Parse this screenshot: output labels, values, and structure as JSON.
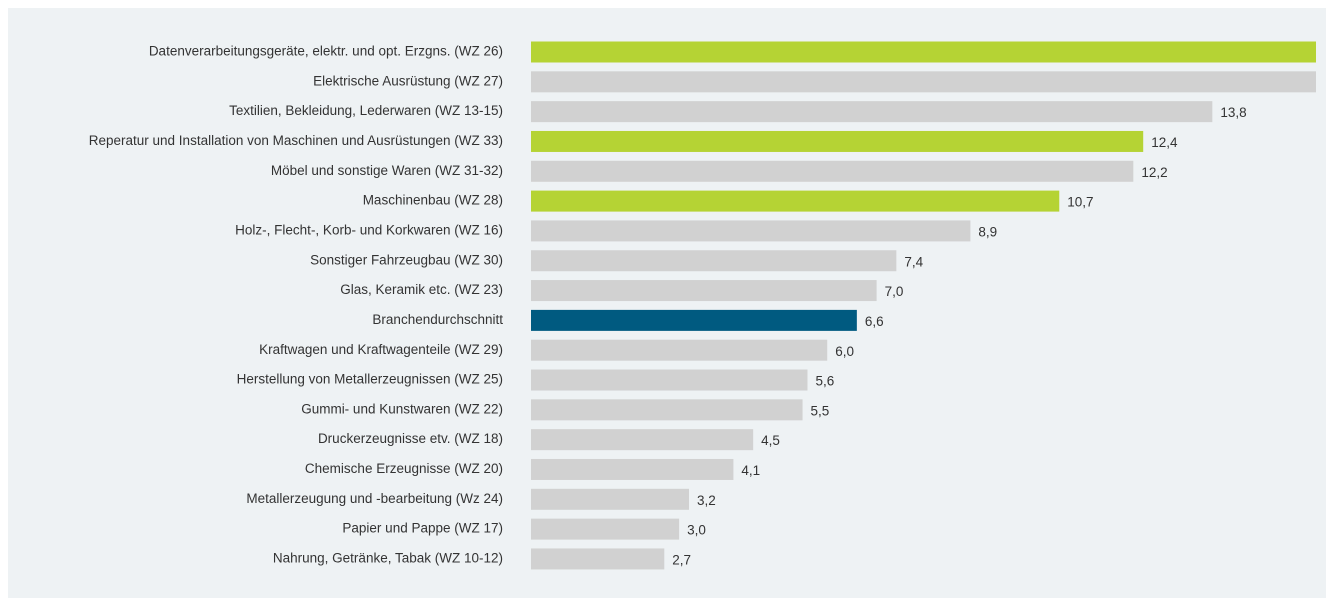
{
  "chart_data": {
    "type": "bar",
    "orientation": "horizontal",
    "categories": [
      "Datenverarbeitungsgeräte, elektr. und opt. Erzgns. (WZ 26)",
      "Elektrische Ausrüstung (WZ 27)",
      "Textilien, Bekleidung, Lederwaren (WZ 13-15)",
      "Reperatur und Installation von Maschinen und Ausrüstungen (WZ 33)",
      "Möbel und sonstige Waren (WZ 31-32)",
      "Maschinenbau (WZ 28)",
      "Holz-, Flecht-, Korb- und Korkwaren (WZ 16)",
      "Sonstiger Fahrzeugbau (WZ 30)",
      "Glas, Keramik etc. (WZ 23)",
      "Branchendurchschnitt",
      "Kraftwagen und Kraftwagenteile (WZ 29)",
      "Herstellung von Metallerzeugnissen (WZ 25)",
      "Gummi- und Kunstwaren (WZ 22)",
      "Druckerzeugnisse etv. (WZ 18)",
      "Chemische Erzeugnisse (WZ 20)",
      "Metallerzeugung und -bearbeitung (Wz 24)",
      "Papier und Pappe (WZ 17)",
      "Nahrung, Getränke, Tabak (WZ 10-12)"
    ],
    "values": [
      15.9,
      15.9,
      13.8,
      12.4,
      12.2,
      10.7,
      8.9,
      7.4,
      7.0,
      6.6,
      6.0,
      5.6,
      5.5,
      4.5,
      4.1,
      3.2,
      3.0,
      2.7
    ],
    "value_labels": [
      null,
      null,
      "13,8",
      "12,4",
      "12,2",
      "10,7",
      "8,9",
      "7,4",
      "7,0",
      "6,6",
      "6,0",
      "5,6",
      "5,5",
      "4,5",
      "4,1",
      "3,2",
      "3,0",
      "2,7"
    ],
    "colors": [
      "#b5d334",
      "#d1d1d1",
      "#d1d1d1",
      "#b5d334",
      "#d1d1d1",
      "#b5d334",
      "#d1d1d1",
      "#d1d1d1",
      "#d1d1d1",
      "#005a80",
      "#d1d1d1",
      "#d1d1d1",
      "#d1d1d1",
      "#d1d1d1",
      "#d1d1d1",
      "#d1d1d1",
      "#d1d1d1",
      "#d1d1d1"
    ],
    "xlim": [
      0,
      15.9
    ]
  }
}
